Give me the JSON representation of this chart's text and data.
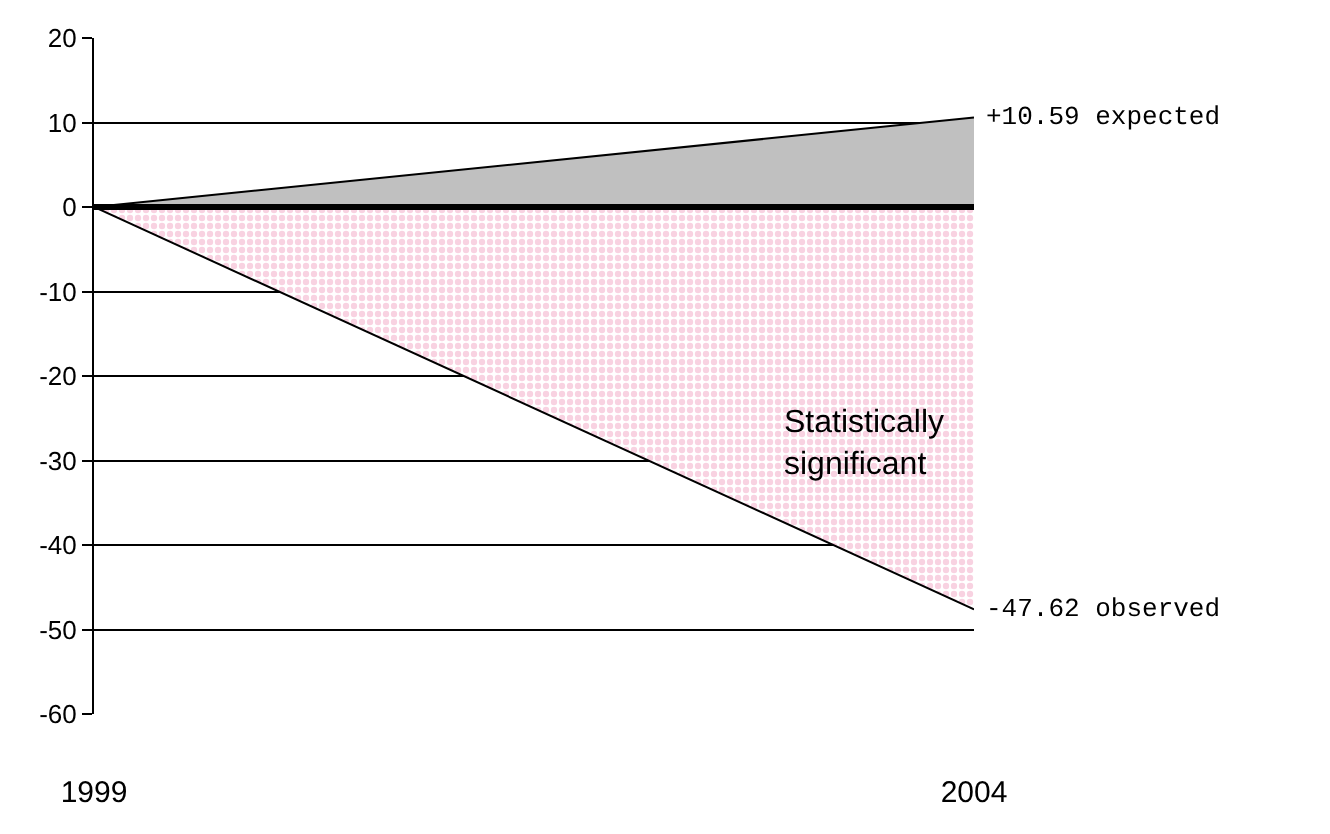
{
  "chart_data": {
    "type": "area",
    "x": [
      1999,
      2004
    ],
    "xlim": [
      1999,
      2004
    ],
    "xticks": [
      1999,
      2004
    ],
    "ylim": [
      -60,
      20
    ],
    "yticks": [
      -60,
      -50,
      -40,
      -30,
      -20,
      -10,
      0,
      10,
      20
    ],
    "grid": "y",
    "legend": false,
    "series": [
      {
        "color": "#c0c0c0",
        "values": [
          0,
          10.59
        ]
      },
      {
        "color": "#f2a6c4",
        "values": [
          0,
          -47.62
        ]
      }
    ],
    "ref_lines": [
      {
        "axis": "y",
        "value": 0,
        "color": "#000000"
      }
    ],
    "annotations": [
      {
        "text": "+10.59 expected",
        "x": 2004,
        "y": 10.59
      },
      {
        "text": "-47.62 observed",
        "x": 2004,
        "y": -47.62
      },
      "Statistically significant"
    ]
  }
}
